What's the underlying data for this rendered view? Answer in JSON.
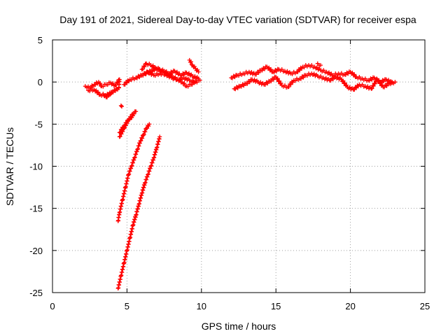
{
  "chart_data": {
    "type": "scatter",
    "title": "Day 191 of 2021, Sidereal Day-to-day VTEC variation (SDTVAR) for receiver espa",
    "xlabel": "GPS time / hours",
    "ylabel": "SDTVAR / TECUs",
    "xlim": [
      0,
      25
    ],
    "ylim": [
      -25,
      5
    ],
    "xticks": [
      0,
      5,
      10,
      15,
      20,
      25
    ],
    "yticks": [
      5,
      0,
      -5,
      -10,
      -15,
      -20,
      -25
    ],
    "grid": true,
    "marker": "+",
    "series": [
      {
        "name": "SDTVAR",
        "color": "#ff0000",
        "segments": [
          {
            "x": [
              2.2,
              2.5,
              2.8,
              3.1,
              3.3,
              3.6,
              3.9,
              4.2,
              4.5,
              4.45,
              4.0,
              3.6,
              3.2,
              2.8,
              2.4
            ],
            "y": [
              -0.5,
              -0.7,
              -0.3,
              0.0,
              -0.5,
              -0.3,
              -0.1,
              -0.4,
              0.3,
              -0.7,
              -1.2,
              -1.6,
              -1.5,
              -0.9,
              -1.0
            ]
          },
          {
            "x": [
              3.4,
              3.6,
              3.8,
              4.0
            ],
            "y": [
              -1.4,
              -1.8,
              -1.5,
              -1.2
            ]
          },
          {
            "x": [
              4.6,
              4.65
            ],
            "y": [
              -2.8,
              -2.9
            ]
          },
          {
            "x": [
              4.5,
              4.8,
              5.1,
              5.4,
              5.6
            ],
            "y": [
              -6.5,
              -5.5,
              -4.5,
              -3.8,
              -3.5
            ]
          },
          {
            "x": [
              4.5,
              4.8,
              5.1,
              5.4
            ],
            "y": [
              -6.0,
              -5.2,
              -4.5,
              -4.0
            ]
          },
          {
            "x": [
              4.4,
              4.5,
              4.7,
              4.9,
              5.1,
              5.3,
              5.5,
              5.7,
              5.9,
              6.1,
              6.3,
              6.5
            ],
            "y": [
              -16.5,
              -15.5,
              -14.0,
              -12.5,
              -11.0,
              -10.0,
              -9.0,
              -8.0,
              -7.0,
              -6.3,
              -5.5,
              -5.0
            ]
          },
          {
            "x": [
              4.4,
              4.6,
              4.8,
              5.0,
              5.2,
              5.4,
              5.6,
              5.8,
              6.0,
              6.2,
              6.4,
              6.6,
              6.8,
              7.0,
              7.2
            ],
            "y": [
              -24.5,
              -23.0,
              -21.5,
              -20.0,
              -18.5,
              -17.0,
              -15.8,
              -14.5,
              -13.2,
              -12.0,
              -11.0,
              -10.0,
              -9.0,
              -7.8,
              -6.5
            ]
          },
          {
            "x": [
              4.8,
              5.2,
              5.6,
              6.0,
              6.4,
              6.8,
              7.2,
              7.6,
              8.0,
              8.4,
              8.8,
              9.2,
              9.6,
              9.9
            ],
            "y": [
              -0.3,
              0.3,
              0.5,
              0.8,
              1.2,
              0.8,
              1.0,
              0.9,
              0.5,
              0.3,
              0.5,
              0.2,
              0.0,
              0.2
            ]
          },
          {
            "x": [
              6.0,
              6.3,
              6.6,
              6.9,
              7.2,
              7.5,
              7.8,
              8.1,
              8.4,
              8.7,
              9.0,
              9.3,
              9.6
            ],
            "y": [
              1.5,
              2.2,
              2.0,
              1.7,
              1.5,
              1.3,
              1.0,
              0.6,
              0.3,
              0.0,
              -0.5,
              -0.3,
              0.1
            ]
          },
          {
            "x": [
              6.2,
              6.6,
              7.0,
              7.4,
              7.8,
              8.2,
              8.6,
              9.0,
              9.4,
              9.8
            ],
            "y": [
              1.0,
              1.3,
              1.6,
              1.2,
              1.0,
              1.3,
              0.8,
              1.1,
              0.7,
              0.4
            ]
          },
          {
            "x": [
              9.2,
              9.4,
              9.6,
              9.8
            ],
            "y": [
              2.6,
              2.0,
              1.6,
              1.2
            ]
          },
          {
            "x": [
              12.0,
              12.4,
              12.8,
              13.2,
              13.6,
              14.0,
              14.4,
              14.8,
              15.2,
              15.6,
              16.0,
              16.4,
              16.8,
              17.2,
              17.6,
              18.0,
              18.4,
              18.8,
              19.2,
              19.6,
              20.0,
              20.4,
              20.8,
              21.2,
              21.6,
              22.0,
              22.4,
              22.8
            ],
            "y": [
              0.5,
              0.8,
              1.0,
              1.2,
              0.9,
              1.4,
              1.8,
              1.2,
              1.5,
              1.3,
              1.0,
              1.2,
              1.8,
              2.0,
              1.8,
              1.4,
              1.2,
              0.8,
              1.0,
              0.9,
              1.2,
              0.6,
              0.4,
              0.2,
              0.5,
              0.0,
              0.3,
              -0.1
            ]
          },
          {
            "x": [
              12.2,
              12.6,
              13.0,
              13.4,
              13.8,
              14.2,
              14.6,
              15.0,
              15.4,
              15.8,
              16.2,
              16.6,
              17.0,
              17.4,
              17.8,
              18.2,
              18.6,
              19.0,
              19.4,
              19.8,
              20.2,
              20.6,
              21.0,
              21.4,
              21.8,
              22.2,
              22.6,
              23.0
            ],
            "y": [
              -0.8,
              -0.5,
              -0.2,
              0.3,
              0.0,
              -0.3,
              0.1,
              0.6,
              -0.4,
              -0.6,
              0.2,
              0.4,
              0.8,
              1.0,
              0.7,
              0.5,
              0.2,
              0.6,
              0.3,
              -0.6,
              -0.9,
              -0.3,
              -0.5,
              -0.8,
              0.3,
              -0.6,
              -0.2,
              0.0
            ]
          },
          {
            "x": [
              17.8,
              18.0
            ],
            "y": [
              2.2,
              2.0
            ]
          }
        ]
      }
    ]
  }
}
